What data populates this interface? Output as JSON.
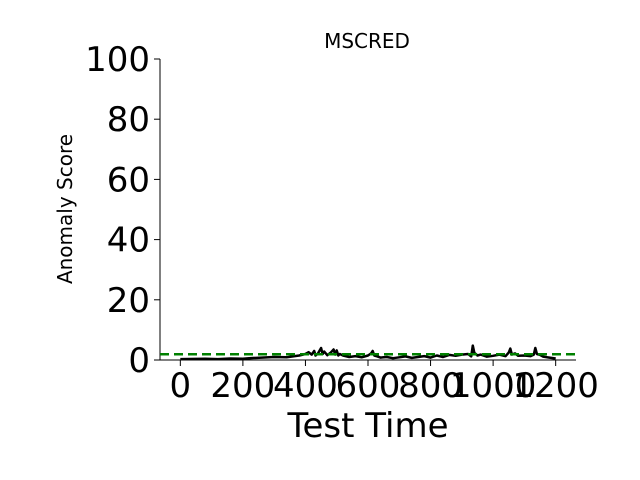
{
  "chart_data": {
    "type": "line",
    "title": "MSCRED",
    "xlabel": "Test Time",
    "ylabel": "Anomaly Score",
    "xlim": [
      -65,
      1265
    ],
    "ylim": [
      0,
      100
    ],
    "xticks": [
      0,
      200,
      400,
      600,
      800,
      1000,
      1200
    ],
    "yticks": [
      0,
      20,
      40,
      60,
      80,
      100
    ],
    "grid": false,
    "colors": {
      "score": "#000000",
      "threshold": "#008000"
    },
    "threshold": 1.9,
    "series": [
      {
        "kind": "line",
        "x": [
          0,
          80,
          120,
          160,
          200,
          220,
          260,
          300,
          340,
          360,
          380,
          400,
          410,
          420,
          428,
          432,
          440,
          450,
          455,
          460,
          470,
          480,
          490,
          495,
          500,
          505,
          510,
          520,
          540,
          560,
          580,
          600,
          610,
          615,
          620,
          630,
          640,
          660,
          680,
          700,
          720,
          740,
          760,
          780,
          800,
          820,
          840,
          860,
          880,
          900,
          920,
          930,
          935,
          940,
          950,
          960,
          980,
          1000,
          1020,
          1040,
          1050,
          1055,
          1060,
          1070,
          1080,
          1100,
          1120,
          1130,
          1135,
          1140,
          1150,
          1160,
          1180,
          1200
        ],
        "y": [
          0.3,
          0.4,
          0.3,
          0.5,
          0.4,
          0.6,
          0.8,
          1.0,
          0.9,
          1.2,
          1.5,
          2.0,
          2.6,
          1.8,
          3.0,
          1.5,
          2.2,
          4.0,
          2.0,
          2.8,
          1.6,
          2.4,
          3.5,
          1.8,
          3.2,
          1.5,
          2.0,
          1.5,
          1.0,
          1.3,
          0.9,
          1.5,
          2.2,
          3.0,
          1.5,
          1.2,
          0.8,
          1.0,
          0.6,
          0.9,
          1.2,
          0.7,
          1.0,
          1.3,
          0.8,
          1.5,
          1.0,
          1.7,
          1.4,
          1.8,
          2.0,
          1.2,
          4.8,
          2.4,
          1.5,
          1.8,
          1.1,
          1.4,
          1.8,
          1.3,
          2.5,
          3.8,
          1.8,
          2.2,
          1.4,
          1.5,
          1.3,
          1.8,
          4.0,
          2.0,
          1.7,
          1.1,
          0.8,
          0.5
        ]
      },
      {
        "kind": "threshold",
        "x": [
          -65,
          1265
        ],
        "y": [
          1.9,
          1.9
        ]
      }
    ]
  }
}
